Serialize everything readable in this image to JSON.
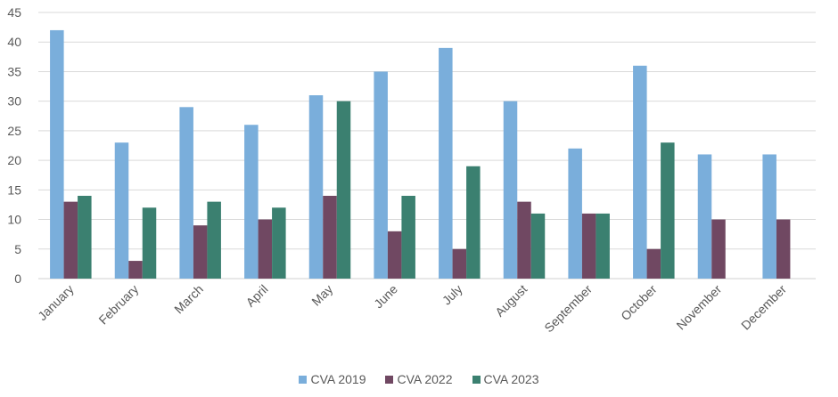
{
  "chart_data": {
    "type": "bar",
    "title": "",
    "xlabel": "",
    "ylabel": "",
    "ylim": [
      0,
      45
    ],
    "yticks": [
      0,
      5,
      10,
      15,
      20,
      25,
      30,
      35,
      40,
      45
    ],
    "grid": true,
    "legend_position": "bottom",
    "categories": [
      "January",
      "February",
      "March",
      "April",
      "May",
      "June",
      "July",
      "August",
      "September",
      "October",
      "November",
      "December"
    ],
    "series": [
      {
        "name": "CVA 2019",
        "color": "#7aaedb",
        "values": [
          42,
          23,
          29,
          26,
          31,
          35,
          39,
          30,
          22,
          36,
          21,
          21
        ]
      },
      {
        "name": "CVA 2022",
        "color": "#704862",
        "values": [
          13,
          3,
          9,
          10,
          14,
          8,
          5,
          13,
          11,
          5,
          10,
          10
        ]
      },
      {
        "name": "CVA 2023",
        "color": "#3b8070",
        "values": [
          14,
          12,
          13,
          12,
          30,
          14,
          19,
          11,
          11,
          23,
          null,
          null
        ]
      }
    ]
  }
}
